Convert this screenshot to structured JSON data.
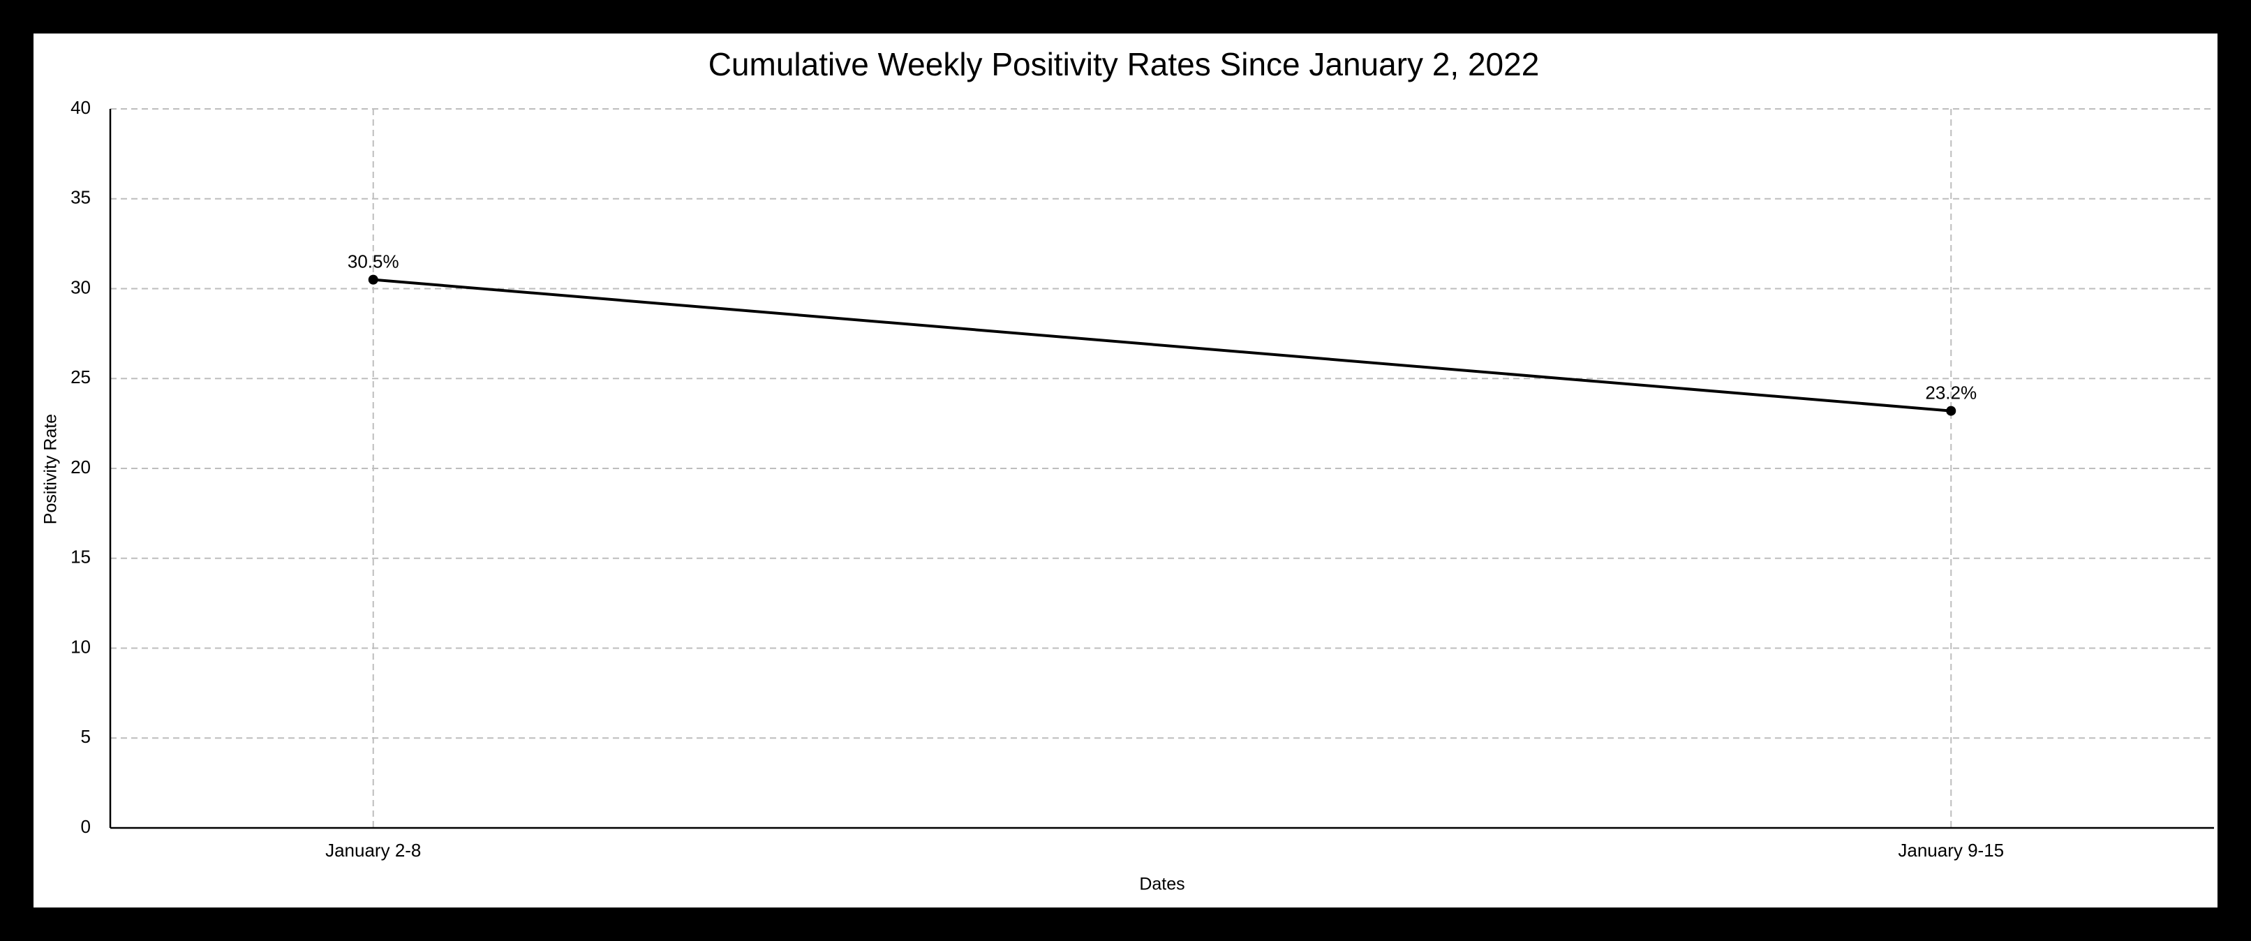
{
  "chart_data": {
    "type": "line",
    "title": "Cumulative Weekly Positivity Rates Since January 2, 2022",
    "xlabel": "Dates",
    "ylabel": "Positivity Rate",
    "categories": [
      "January 2-8",
      "January 9-15"
    ],
    "series": [
      {
        "values": [
          30.5,
          23.2
        ],
        "data_labels": [
          "30.5%",
          "23.2%"
        ],
        "color": "#000000"
      }
    ],
    "ylim": [
      0,
      40
    ],
    "yticks": [
      0,
      5,
      10,
      15,
      20,
      25,
      30,
      35,
      40
    ],
    "grid": true,
    "grid_style": "dashed",
    "legend": "none"
  },
  "colors": {
    "border": "#000000",
    "background": "#ffffff",
    "grid": "#bdbdbd"
  }
}
